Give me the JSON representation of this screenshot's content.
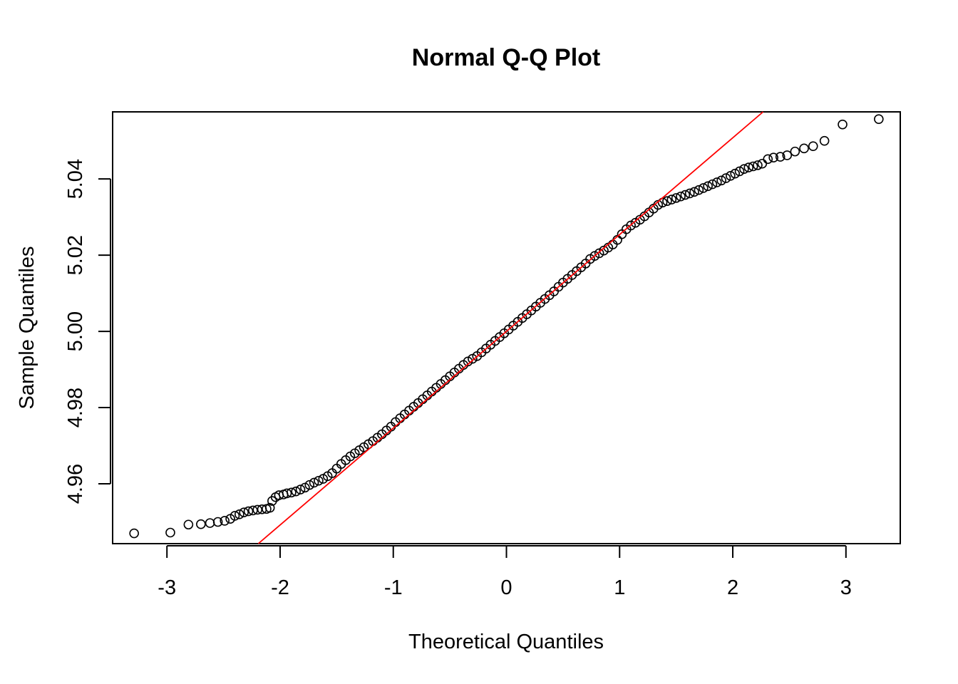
{
  "chart_data": {
    "type": "scatter",
    "title": "Normal Q-Q Plot",
    "xlabel": "Theoretical Quantiles",
    "ylabel": "Sample Quantiles",
    "xlim": [
      -3.48,
      3.48
    ],
    "ylim": [
      4.9443,
      5.0576
    ],
    "x_ticks": [
      -3,
      -2,
      -1,
      0,
      1,
      2,
      3
    ],
    "x_tick_labels": [
      "-3",
      "-2",
      "-1",
      "0",
      "1",
      "2",
      "3"
    ],
    "y_ticks": [
      4.96,
      4.98,
      5.0,
      5.02,
      5.04
    ],
    "y_tick_labels": [
      "4.96",
      "4.98",
      "5.00",
      "5.02",
      "5.04"
    ],
    "grid": false,
    "legend": "none",
    "point_color": "#000000",
    "reference_line": {
      "color": "#ff0000",
      "intercept": 5.0,
      "slope": 0.0254
    },
    "points": [
      [
        -3.29,
        4.947
      ],
      [
        -2.97,
        4.9472
      ],
      [
        -2.81,
        4.9493
      ],
      [
        -2.7,
        4.9494
      ],
      [
        -2.62,
        4.9497
      ],
      [
        -2.55,
        4.95
      ],
      [
        -2.49,
        4.9503
      ],
      [
        -2.44,
        4.9508
      ],
      [
        -2.4,
        4.9516
      ],
      [
        -2.36,
        4.952
      ],
      [
        -2.32,
        4.9525
      ],
      [
        -2.28,
        4.9528
      ],
      [
        -2.24,
        4.953
      ],
      [
        -2.2,
        4.9532
      ],
      [
        -2.16,
        4.9533
      ],
      [
        -2.12,
        4.9534
      ],
      [
        -2.09,
        4.9537
      ],
      [
        -2.07,
        4.9555
      ],
      [
        -2.04,
        4.9565
      ],
      [
        -2.01,
        4.957
      ],
      [
        -1.97,
        4.9572
      ],
      [
        -1.94,
        4.9575
      ],
      [
        -1.9,
        4.9577
      ],
      [
        -1.86,
        4.958
      ],
      [
        -1.82,
        4.9585
      ],
      [
        -1.78,
        4.959
      ],
      [
        -1.74,
        4.9597
      ],
      [
        -1.7,
        4.9603
      ],
      [
        -1.66,
        4.9608
      ],
      [
        -1.62,
        4.9613
      ],
      [
        -1.58,
        4.962
      ],
      [
        -1.54,
        4.9628
      ],
      [
        -1.5,
        4.964
      ],
      [
        -1.46,
        4.9652
      ],
      [
        -1.42,
        4.9662
      ],
      [
        -1.38,
        4.9672
      ],
      [
        -1.34,
        4.968
      ],
      [
        -1.3,
        4.9688
      ],
      [
        -1.26,
        4.9696
      ],
      [
        -1.22,
        4.9704
      ],
      [
        -1.18,
        4.9712
      ],
      [
        -1.14,
        4.9721
      ],
      [
        -1.1,
        4.973
      ],
      [
        -1.06,
        4.974
      ],
      [
        -1.02,
        4.975
      ],
      [
        -0.98,
        4.9762
      ],
      [
        -0.94,
        4.9772
      ],
      [
        -0.9,
        4.9782
      ],
      [
        -0.86,
        4.9792
      ],
      [
        -0.82,
        4.9802
      ],
      [
        -0.78,
        4.9812
      ],
      [
        -0.74,
        4.9822
      ],
      [
        -0.7,
        4.9832
      ],
      [
        -0.66,
        4.9842
      ],
      [
        -0.62,
        4.9852
      ],
      [
        -0.58,
        4.9862
      ],
      [
        -0.54,
        4.9872
      ],
      [
        -0.5,
        4.9882
      ],
      [
        -0.46,
        4.9892
      ],
      [
        -0.42,
        4.9902
      ],
      [
        -0.38,
        4.9912
      ],
      [
        -0.34,
        4.9921
      ],
      [
        -0.3,
        4.9928
      ],
      [
        -0.26,
        4.9935
      ],
      [
        -0.22,
        4.9945
      ],
      [
        -0.18,
        4.9955
      ],
      [
        -0.14,
        4.9965
      ],
      [
        -0.1,
        4.9975
      ],
      [
        -0.06,
        4.9985
      ],
      [
        -0.02,
        4.9995
      ],
      [
        0.02,
        5.0005
      ],
      [
        0.06,
        5.0015
      ],
      [
        0.1,
        5.0025
      ],
      [
        0.14,
        5.0035
      ],
      [
        0.18,
        5.0045
      ],
      [
        0.22,
        5.0055
      ],
      [
        0.26,
        5.0065
      ],
      [
        0.3,
        5.0075
      ],
      [
        0.34,
        5.0085
      ],
      [
        0.38,
        5.0095
      ],
      [
        0.42,
        5.0105
      ],
      [
        0.46,
        5.0117
      ],
      [
        0.5,
        5.0128
      ],
      [
        0.54,
        5.0138
      ],
      [
        0.58,
        5.0148
      ],
      [
        0.62,
        5.0158
      ],
      [
        0.66,
        5.0168
      ],
      [
        0.7,
        5.0178
      ],
      [
        0.74,
        5.019
      ],
      [
        0.78,
        5.0198
      ],
      [
        0.82,
        5.0205
      ],
      [
        0.86,
        5.0212
      ],
      [
        0.9,
        5.022
      ],
      [
        0.94,
        5.0228
      ],
      [
        0.98,
        5.024
      ],
      [
        1.02,
        5.0255
      ],
      [
        1.06,
        5.0268
      ],
      [
        1.1,
        5.0278
      ],
      [
        1.14,
        5.0285
      ],
      [
        1.18,
        5.0293
      ],
      [
        1.22,
        5.0302
      ],
      [
        1.26,
        5.0312
      ],
      [
        1.3,
        5.0322
      ],
      [
        1.34,
        5.0332
      ],
      [
        1.38,
        5.0338
      ],
      [
        1.42,
        5.0342
      ],
      [
        1.46,
        5.0346
      ],
      [
        1.5,
        5.035
      ],
      [
        1.54,
        5.0354
      ],
      [
        1.58,
        5.0358
      ],
      [
        1.62,
        5.0362
      ],
      [
        1.66,
        5.0366
      ],
      [
        1.7,
        5.0371
      ],
      [
        1.74,
        5.0376
      ],
      [
        1.78,
        5.0381
      ],
      [
        1.82,
        5.0386
      ],
      [
        1.86,
        5.0391
      ],
      [
        1.9,
        5.0396
      ],
      [
        1.94,
        5.0402
      ],
      [
        1.98,
        5.0408
      ],
      [
        2.02,
        5.0414
      ],
      [
        2.06,
        5.042
      ],
      [
        2.1,
        5.0426
      ],
      [
        2.14,
        5.043
      ],
      [
        2.18,
        5.0433
      ],
      [
        2.22,
        5.0436
      ],
      [
        2.26,
        5.044
      ],
      [
        2.31,
        5.0452
      ],
      [
        2.36,
        5.0456
      ],
      [
        2.42,
        5.0458
      ],
      [
        2.48,
        5.0462
      ],
      [
        2.55,
        5.0472
      ],
      [
        2.63,
        5.048
      ],
      [
        2.71,
        5.0486
      ],
      [
        2.81,
        5.05
      ],
      [
        2.97,
        5.0543
      ],
      [
        3.29,
        5.0557
      ]
    ]
  }
}
